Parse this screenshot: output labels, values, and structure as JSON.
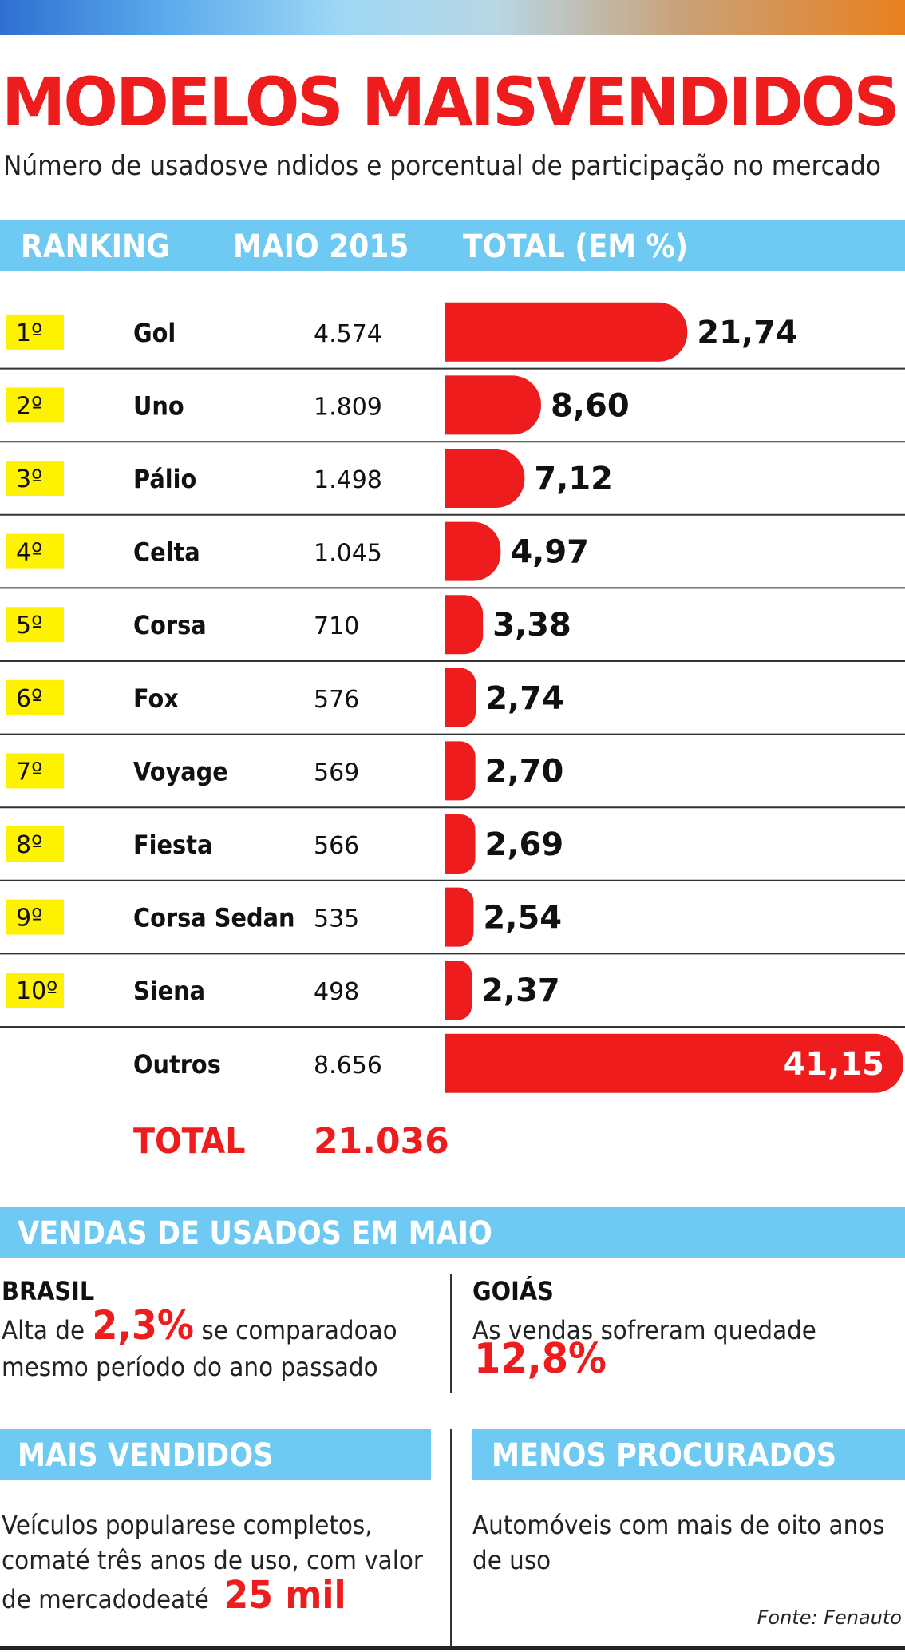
{
  "title": "MODELOS MAISVENDIDOS",
  "subtitle": "Número de usadosve ndidos e porcentual de participação no mercado",
  "header": {
    "ranking": "RANKING",
    "month": "MAIO 2015",
    "total": "TOTAL (EM %)"
  },
  "chart_data": {
    "type": "bar",
    "orientation": "horizontal",
    "ranks": [
      "1º",
      "2º",
      "3º",
      "4º",
      "5º",
      "6º",
      "7º",
      "8º",
      "9º",
      "10º",
      ""
    ],
    "categories": [
      "Gol",
      "Uno",
      "Pálio",
      "Celta",
      "Corsa",
      "Fox",
      "Voyage",
      "Fiesta",
      "Corsa Sedan",
      "Siena",
      "Outros"
    ],
    "units": [
      "4.574",
      "1.809",
      "1.498",
      "1.045",
      "710",
      "576",
      "569",
      "566",
      "535",
      "498",
      "8.656"
    ],
    "values": [
      21.74,
      8.6,
      7.12,
      4.97,
      3.38,
      2.74,
      2.7,
      2.69,
      2.54,
      2.37,
      41.15
    ],
    "value_labels": [
      "21,74",
      "8,60",
      "7,12",
      "4,97",
      "3,38",
      "2,74",
      "2,70",
      "2,69",
      "2,54",
      "2,37",
      "41,15"
    ],
    "xlim": [
      0,
      41.15
    ],
    "bar_color": "#ee1c1c",
    "rank_badge_color": "#fff200"
  },
  "totals": {
    "label": "TOTAL",
    "value": "21.036"
  },
  "vendas": {
    "title": "VENDAS DE USADOS EM MAIO",
    "brasil": {
      "region": "BRASIL",
      "pre": "Alta de ",
      "highlight": "2,3%",
      "post": " se comparadoao",
      "line2": "mesmo período do ano passado"
    },
    "goias": {
      "region": "GOIÁS",
      "text": "As vendas sofreram quedade",
      "highlight": "12,8%"
    }
  },
  "mais_vendidos": {
    "title": "MAIS VENDIDOS",
    "line1": "Veículos popularese  completos,",
    "line2": "comaté  três anos de uso, com valor",
    "line3": "de mercadodeaté",
    "highlight": "25 mil"
  },
  "menos_procurados": {
    "title": "MENOS PROCURADOS",
    "line1": "Automóveis com mais de oito anos",
    "line2": "de uso"
  },
  "source": "Fonte: Fenauto",
  "colors": {
    "accent_red": "#ee1c1c",
    "header_blue": "#6ec9f3",
    "badge_yellow": "#fff200"
  }
}
